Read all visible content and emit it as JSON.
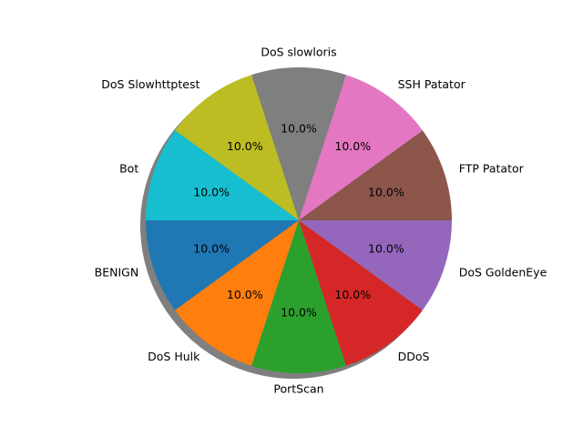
{
  "chart_data": {
    "type": "pie",
    "title": "",
    "shadow": true,
    "start_angle_deg": 180,
    "direction": "counterclockwise",
    "slices": [
      {
        "label": "BENIGN",
        "value": 10.0,
        "pct_label": "10.0%",
        "color": "#1f77b4"
      },
      {
        "label": "DoS Hulk",
        "value": 10.0,
        "pct_label": "10.0%",
        "color": "#ff7f0e"
      },
      {
        "label": "PortScan",
        "value": 10.0,
        "pct_label": "10.0%",
        "color": "#2ca02c"
      },
      {
        "label": "DDoS",
        "value": 10.0,
        "pct_label": "10.0%",
        "color": "#d62728"
      },
      {
        "label": "DoS GoldenEye",
        "value": 10.0,
        "pct_label": "10.0%",
        "color": "#9467bd"
      },
      {
        "label": "FTP Patator",
        "value": 10.0,
        "pct_label": "10.0%",
        "color": "#8c564b"
      },
      {
        "label": "SSH Patator",
        "value": 10.0,
        "pct_label": "10.0%",
        "color": "#e377c2"
      },
      {
        "label": "DoS slowloris",
        "value": 10.0,
        "pct_label": "10.0%",
        "color": "#7f7f7f"
      },
      {
        "label": "DoS Slowhttptest",
        "value": 10.0,
        "pct_label": "10.0%",
        "color": "#bcbd22"
      },
      {
        "label": "Bot",
        "value": 10.0,
        "pct_label": "10.0%",
        "color": "#17becf"
      }
    ]
  }
}
